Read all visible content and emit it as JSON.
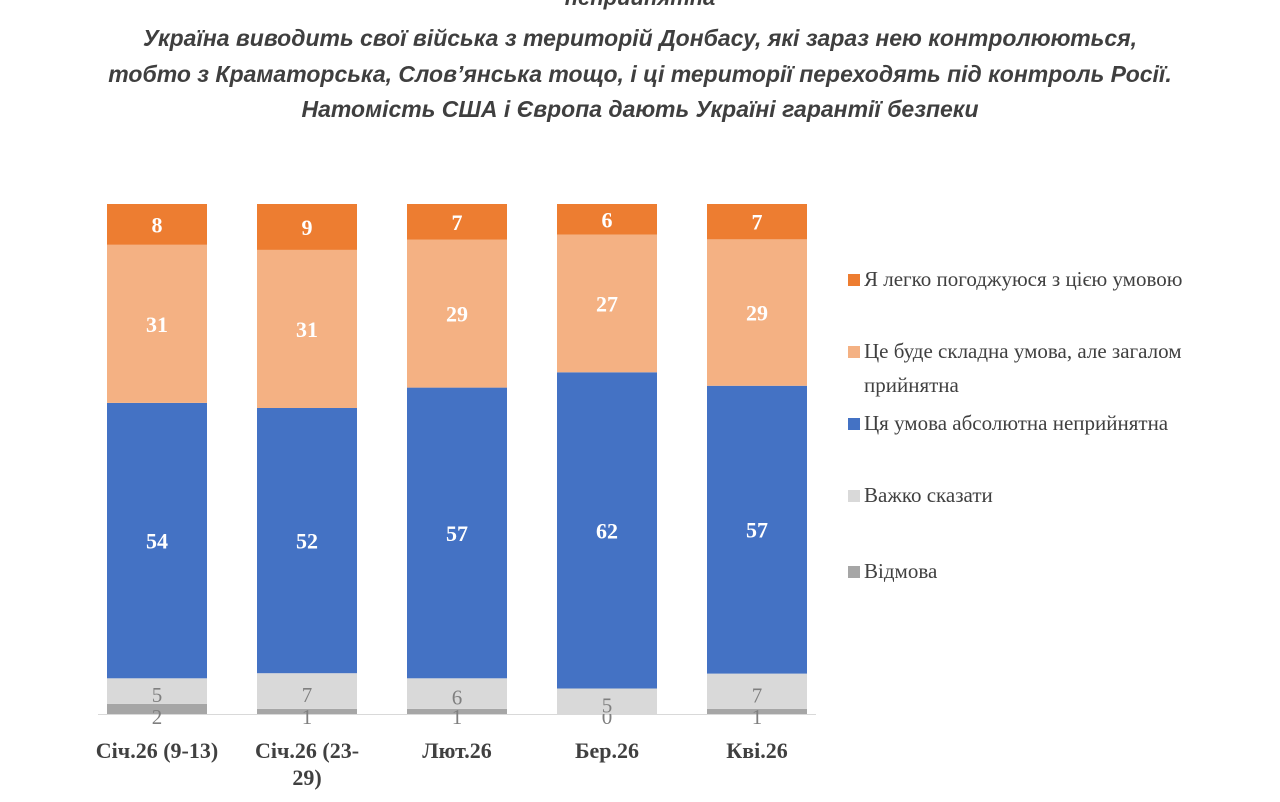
{
  "heading_partial": "неприйнятна",
  "subtitle_lines": [
    "Україна виводить свої війська з територій Донбасу, які зараз нею контролюються,",
    "тобто з Краматорська, Слов’янська тощо, і ці території переходять під контроль Росії.",
    "Натомість США і Європа дають Україні гарантії безпеки"
  ],
  "chart_data": {
    "type": "bar",
    "stacked": true,
    "categories": [
      "Січ.26 (9-13)",
      "Січ.26 (23-29)",
      "Лют.26",
      "Бер.26",
      "Кві.26"
    ],
    "series": [
      {
        "name": "Відмова",
        "values": [
          2,
          1,
          1,
          0,
          1
        ],
        "color": "#a6a6a6",
        "label_color": "#7f7f7f"
      },
      {
        "name": "Важко сказати",
        "values": [
          5,
          7,
          6,
          5,
          7
        ],
        "color": "#d9d9d9",
        "label_color": "#7f7f7f"
      },
      {
        "name": "Ця умова абсолютна неприйнятна",
        "values": [
          54,
          52,
          57,
          62,
          57
        ],
        "color": "#4472c4",
        "label_color": "#ffffff"
      },
      {
        "name": "Це буде складна умова, але загалом прийнятна",
        "values": [
          31,
          31,
          29,
          27,
          29
        ],
        "color": "#f4b183",
        "label_color": "#ffffff"
      },
      {
        "name": "Я легко погоджуюся з цією умовою",
        "values": [
          8,
          9,
          7,
          6,
          7
        ],
        "color": "#ed7d31",
        "label_color": "#ffffff"
      }
    ],
    "legend_order": [
      "Я легко погоджуюся з цією умовою",
      "Це буде складна умова, але загалом прийнятна",
      "Ця умова абсолютна неприйнятна",
      "Важко сказати",
      "Відмова"
    ],
    "legend_position": "right",
    "grid": false
  }
}
